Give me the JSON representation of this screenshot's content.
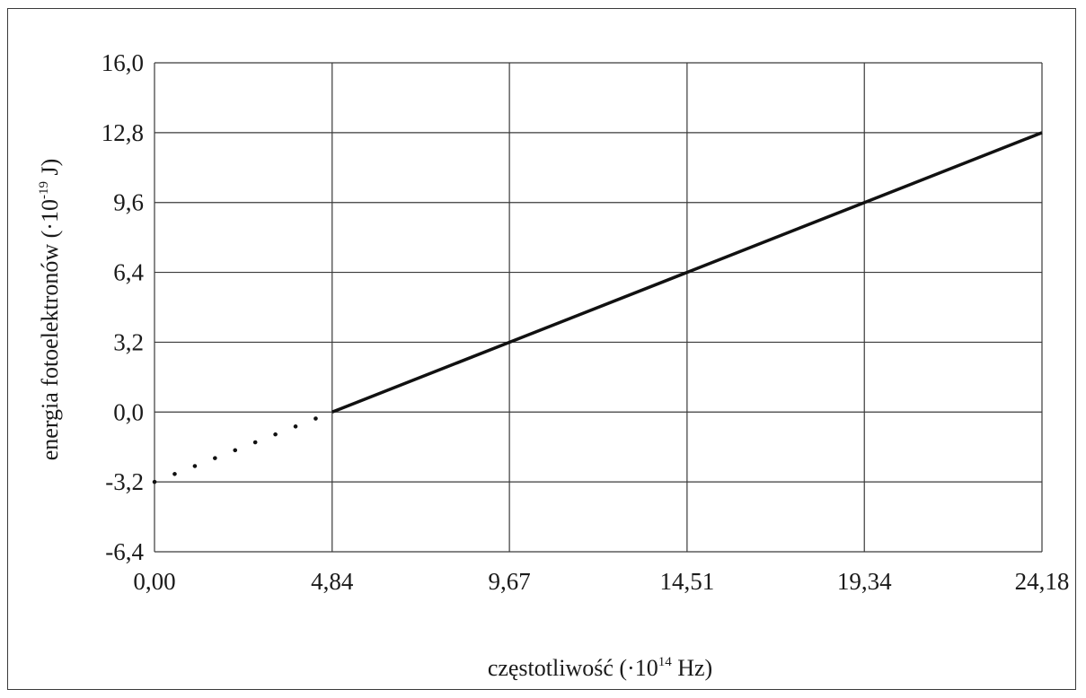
{
  "chart_data": {
    "type": "line",
    "xlabel": {
      "prefix": "częstotliwość (·10",
      "exponent": "14",
      "suffix": " Hz)"
    },
    "ylabel": {
      "prefix": "energia fotoelektronów (·10",
      "exponent": "-19",
      "suffix": " J)"
    },
    "x_ticks": [
      0.0,
      4.84,
      9.67,
      14.51,
      19.34,
      24.18
    ],
    "x_tick_labels": [
      "0,00",
      "4,84",
      "9,67",
      "14,51",
      "19,34",
      "24,18"
    ],
    "y_ticks": [
      -6.4,
      -3.2,
      0.0,
      3.2,
      6.4,
      9.6,
      12.8,
      16.0
    ],
    "y_tick_labels": [
      "-6,4",
      "-3,2",
      "0,0",
      "3,2",
      "6,4",
      "9,6",
      "12,8",
      "16,0"
    ],
    "xlim": [
      0.0,
      24.18
    ],
    "ylim": [
      -6.4,
      16.0
    ],
    "grid": true,
    "series": [
      {
        "style": "solid",
        "x": [
          4.84,
          24.18
        ],
        "y": [
          0.0,
          12.8
        ]
      },
      {
        "style": "dotted",
        "x": [
          0.0,
          4.84
        ],
        "y": [
          -3.2,
          0.0
        ]
      }
    ]
  }
}
